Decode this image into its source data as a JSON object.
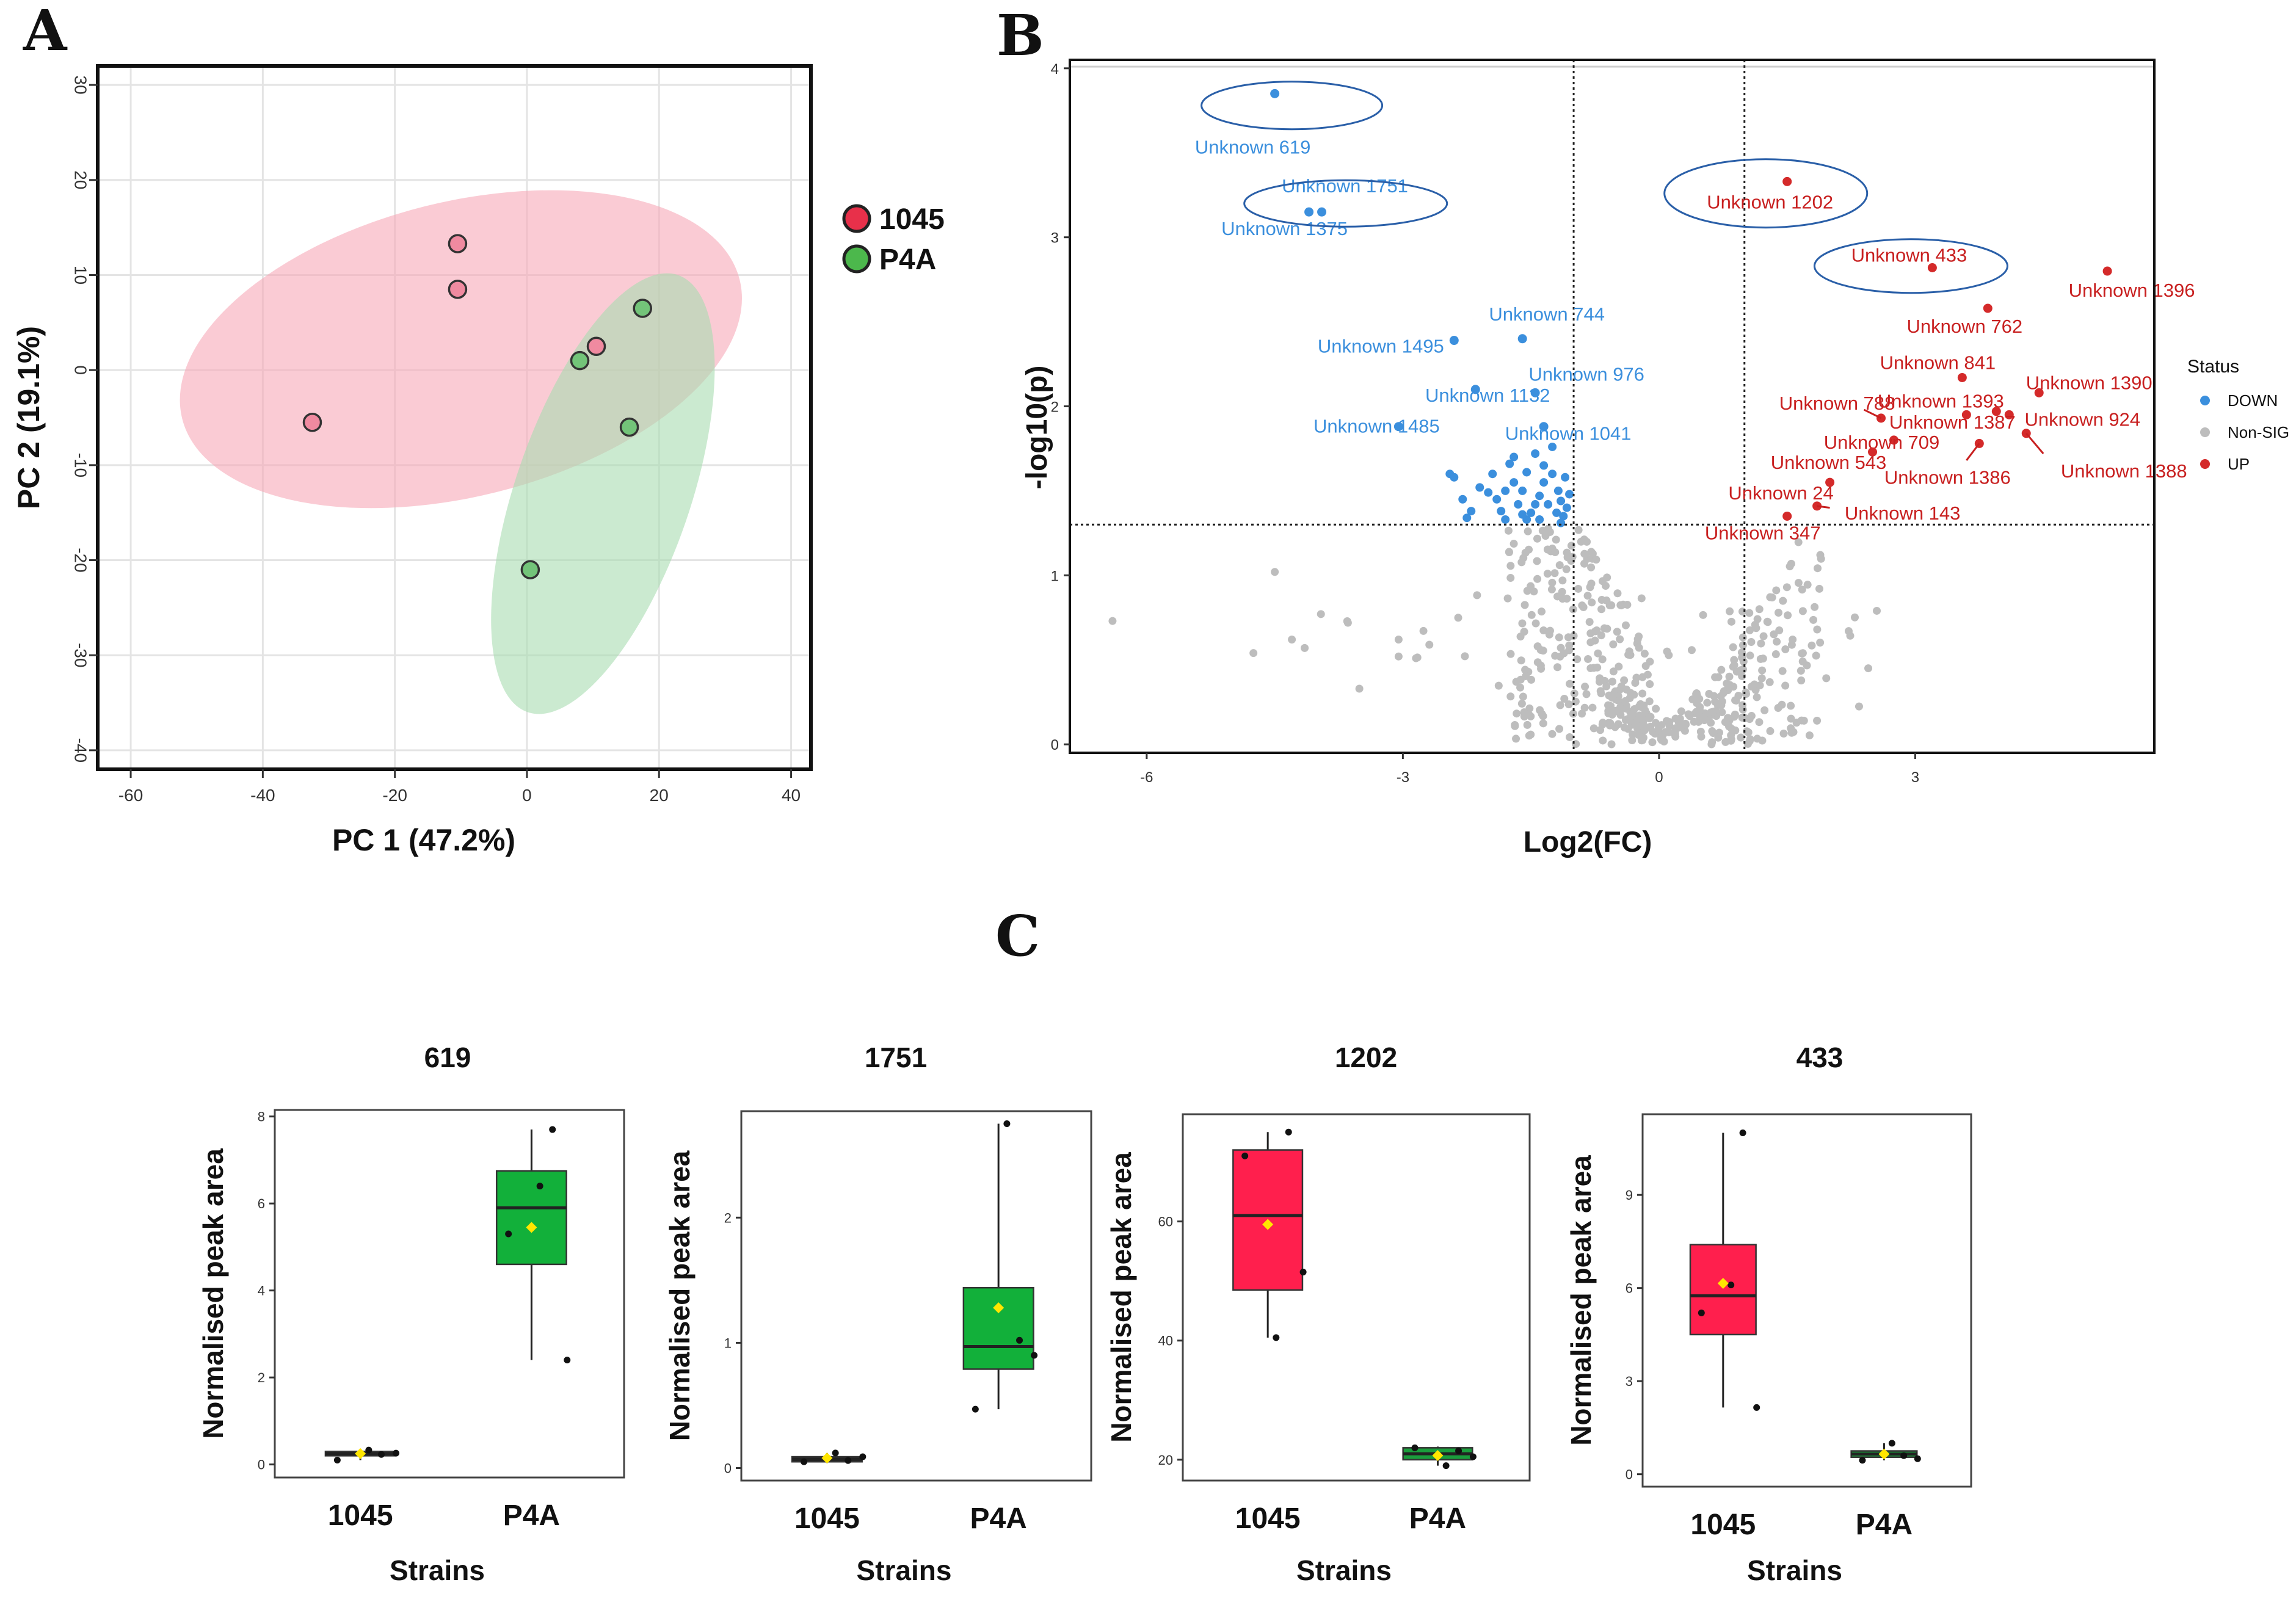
{
  "panels": {
    "a": "A",
    "b": "B",
    "c": "C"
  },
  "colors": {
    "red": "#e8304a",
    "green": "#6fbf6a",
    "pink_fill": "#f7a9b8",
    "green_fill": "#a8dcb0",
    "down": "#3b8fdd",
    "up": "#d42a2a",
    "nonsig": "#bdbdbd",
    "box_red": "#ff1f4d",
    "box_green": "#12b03a"
  },
  "chart_data": [
    {
      "type": "scatter",
      "panel": "A",
      "title": "",
      "xlabel": "PC 1 (47.2%)",
      "ylabel": "PC 2 (19.1%)",
      "xlim": [
        -65,
        43
      ],
      "ylim": [
        -42,
        32
      ],
      "xticks": [
        -60,
        -40,
        -20,
        0,
        20,
        40
      ],
      "yticks": [
        30,
        20,
        10,
        0,
        -10,
        -20,
        -30,
        -40
      ],
      "legend": [
        {
          "label": "1045",
          "color": "#e8304a"
        },
        {
          "label": "P4A",
          "color": "#4cb84c"
        }
      ],
      "series": [
        {
          "name": "1045",
          "points": [
            [
              -32.5,
              -5.5
            ],
            [
              -10.5,
              8.5
            ],
            [
              -10.5,
              13.3
            ],
            [
              10.5,
              2.5
            ]
          ]
        },
        {
          "name": "P4A",
          "points": [
            [
              8,
              1
            ],
            [
              17.5,
              6.5
            ],
            [
              15.5,
              -6
            ],
            [
              0.5,
              -21
            ]
          ]
        }
      ],
      "ellipses": [
        {
          "name": "1045",
          "center": [
            -10,
            2.2
          ],
          "axes": [
            43.5,
            15.5
          ],
          "angle": 14
        },
        {
          "name": "P4A",
          "center": [
            11.5,
            -13
          ],
          "axes": [
            35,
            9.2
          ],
          "angle": 71
        }
      ]
    },
    {
      "type": "scatter",
      "panel": "B",
      "title": "",
      "xlabel": "Log2(FC)",
      "ylabel": "-log10(p)",
      "xlim": [
        -6.9,
        5.8
      ],
      "ylim": [
        -0.05,
        4.05
      ],
      "xticks": [
        -6,
        -3,
        0,
        3
      ],
      "yticks": [
        0,
        1,
        2,
        3,
        4
      ],
      "thresholds": {
        "x": [
          -1,
          1
        ],
        "y": 1.3
      },
      "legend": {
        "title": "Status",
        "entries": [
          "DOWN",
          "Non-SIG",
          "UP"
        ]
      },
      "labels_down": [
        {
          "name": "Unknown 619",
          "x": -4.5,
          "y": 3.85
        },
        {
          "name": "Unknown 1751",
          "x": -3.95,
          "y": 3.15
        },
        {
          "name": "Unknown 1375",
          "x": -4.1,
          "y": 3.15
        },
        {
          "name": "Unknown 744",
          "x": -1.6,
          "y": 2.4
        },
        {
          "name": "Unknown 1495",
          "x": -2.4,
          "y": 2.39
        },
        {
          "name": "Unknown 1132",
          "x": -2.15,
          "y": 2.1
        },
        {
          "name": "Unknown 976",
          "x": -1.45,
          "y": 2.08
        },
        {
          "name": "Unknown 1485",
          "x": -3.05,
          "y": 1.88
        },
        {
          "name": "Unknown 1041",
          "x": -1.35,
          "y": 1.88
        }
      ],
      "labels_up": [
        {
          "name": "Unknown 1202",
          "x": 1.5,
          "y": 3.33
        },
        {
          "name": "Unknown 433",
          "x": 3.2,
          "y": 2.82
        },
        {
          "name": "Unknown 1396",
          "x": 5.25,
          "y": 2.8
        },
        {
          "name": "Unknown 762",
          "x": 3.85,
          "y": 2.58
        },
        {
          "name": "Unknown 841",
          "x": 3.55,
          "y": 2.17
        },
        {
          "name": "Unknown 1390",
          "x": 4.45,
          "y": 2.08
        },
        {
          "name": "Unknown 1393",
          "x": 3.6,
          "y": 1.95
        },
        {
          "name": "Unknown 924",
          "x": 4.1,
          "y": 1.95
        },
        {
          "name": "Unknown 788",
          "x": 2.6,
          "y": 1.93
        },
        {
          "name": "Unknown 709",
          "x": 2.75,
          "y": 1.8
        },
        {
          "name": "Unknown 1387",
          "x": 3.95,
          "y": 1.97
        },
        {
          "name": "Unknown 543",
          "x": 2.5,
          "y": 1.73
        },
        {
          "name": "Unknown 1388",
          "x": 4.3,
          "y": 1.84
        },
        {
          "name": "Unknown 1386",
          "x": 3.75,
          "y": 1.78
        },
        {
          "name": "Unknown 24",
          "x": 2.0,
          "y": 1.55
        },
        {
          "name": "Unknown 143",
          "x": 1.85,
          "y": 1.41
        },
        {
          "name": "Unknown 347",
          "x": 1.5,
          "y": 1.35
        }
      ],
      "circled": [
        "Unknown 619",
        "Unknown 1751",
        "Unknown 1202",
        "Unknown 433"
      ]
    },
    {
      "type": "box",
      "title": "619",
      "xlabel": "Strains",
      "ylabel": "Normalised peak area",
      "categories": [
        "1045",
        "P4A"
      ],
      "ylim": [
        -0.3,
        8.15
      ],
      "yticks": [
        0,
        2,
        4,
        6,
        8
      ],
      "boxes": [
        {
          "q1": 0.2,
          "median": 0.25,
          "q3": 0.3,
          "min": 0.1,
          "max": 0.33,
          "mean": 0.25,
          "points": [
            0.1,
            0.33,
            0.23,
            0.26
          ]
        },
        {
          "q1": 4.6,
          "median": 5.9,
          "q3": 6.75,
          "min": 2.4,
          "max": 7.7,
          "mean": 5.45,
          "points": [
            5.3,
            6.4,
            7.7,
            2.4
          ]
        }
      ]
    },
    {
      "type": "box",
      "title": "1751",
      "xlabel": "Strains",
      "ylabel": "Normalised peak area",
      "categories": [
        "1045",
        "P4A"
      ],
      "ylim": [
        -0.1,
        2.85
      ],
      "yticks": [
        0,
        1,
        2
      ],
      "boxes": [
        {
          "q1": 0.05,
          "median": 0.07,
          "q3": 0.09,
          "min": 0.04,
          "max": 0.12,
          "mean": 0.08,
          "points": [
            0.05,
            0.12,
            0.06,
            0.09
          ]
        },
        {
          "q1": 0.79,
          "median": 0.97,
          "q3": 1.44,
          "min": 0.47,
          "max": 2.75,
          "mean": 1.28,
          "points": [
            0.47,
            2.75,
            1.02,
            0.9
          ]
        }
      ]
    },
    {
      "type": "box",
      "title": "1202",
      "xlabel": "Strains",
      "ylabel": "Normalised peak area",
      "categories": [
        "1045",
        "P4A"
      ],
      "ylim": [
        16.5,
        78
      ],
      "yticks": [
        20,
        40,
        60
      ],
      "boxes": [
        {
          "q1": 48.5,
          "median": 61,
          "q3": 72,
          "min": 40.5,
          "max": 75,
          "mean": 59.5,
          "points": [
            71,
            40.5,
            75,
            51.5
          ]
        },
        {
          "q1": 20,
          "median": 21,
          "q3": 22,
          "min": 19,
          "max": 22.2,
          "mean": 20.7,
          "points": [
            22,
            19,
            21.5,
            20.5
          ]
        }
      ]
    },
    {
      "type": "box",
      "title": "433",
      "xlabel": "Strains",
      "ylabel": "Normalised peak area",
      "categories": [
        "1045",
        "P4A"
      ],
      "ylim": [
        -0.4,
        11.6
      ],
      "yticks": [
        0,
        3,
        6,
        9
      ],
      "boxes": [
        {
          "q1": 4.5,
          "median": 5.75,
          "q3": 7.4,
          "min": 2.15,
          "max": 11.0,
          "mean": 6.15,
          "points": [
            5.2,
            6.1,
            11.0,
            2.15
          ]
        },
        {
          "q1": 0.55,
          "median": 0.65,
          "q3": 0.75,
          "min": 0.45,
          "max": 1.0,
          "mean": 0.65,
          "points": [
            0.45,
            1.0,
            0.6,
            0.5
          ]
        }
      ]
    }
  ]
}
